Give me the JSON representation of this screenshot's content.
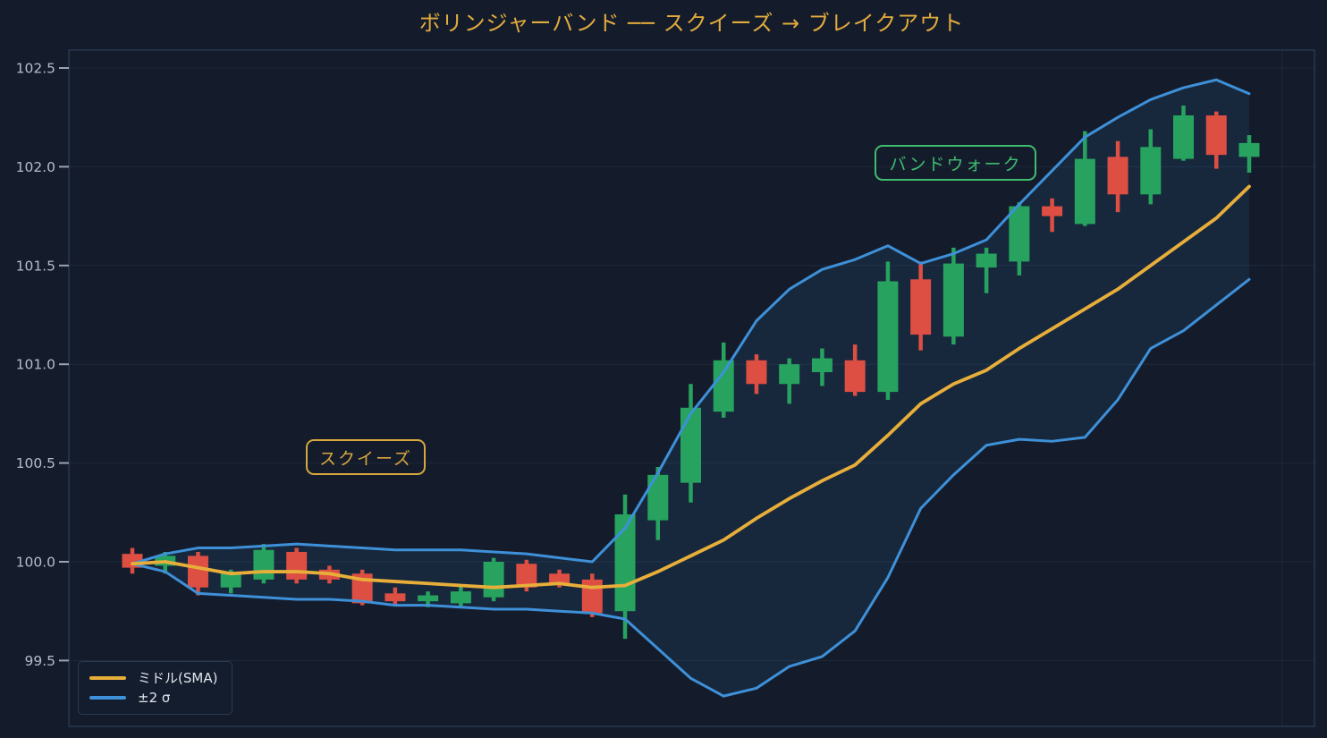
{
  "title": {
    "text": "ボリンジャーバンド ── スクイーズ → ブレイクアウト"
  },
  "annotations": {
    "squeeze": {
      "label": "スクイーズ"
    },
    "bandwalk": {
      "label": "バンドウォーク"
    }
  },
  "legend": {
    "items": [
      {
        "label": "ミドル(SMA)",
        "color": "#e8ae3a"
      },
      {
        "label": "±2 σ",
        "color": "#3e90d8"
      }
    ]
  },
  "colors": {
    "bg": "#141c2c",
    "grid": "#1e2939",
    "frame": "#273650",
    "tick_text": "#b4bdcb",
    "tick_mark": "#9aa3b2",
    "title_gold": "#e2ab3d",
    "squeeze_gold": "#d7a73f",
    "bandwalk_green": "#3fbd6e",
    "candle_up": "#27a35f",
    "candle_down": "#dd4e43",
    "sma": "#e8ae3a",
    "band": "#3e90d8",
    "band_fill": "rgba(62,144,216,0.10)"
  },
  "chart_data": {
    "type": "candlestick",
    "title": "ボリンジャーバンド ── スクイーズ → ブレイクアウト",
    "xlabel": "",
    "ylabel": "",
    "grid": true,
    "legend_position": "lower left",
    "ylim": [
      99.17,
      102.59
    ],
    "yticks": [
      {
        "value": 102.5,
        "label": "102.5"
      },
      {
        "value": 102.0,
        "label": "102.0"
      },
      {
        "value": 101.5,
        "label": "101.5"
      },
      {
        "value": 101.0,
        "label": "101.0"
      },
      {
        "value": 100.5,
        "label": "100.5"
      },
      {
        "value": 100.0,
        "label": "100.0"
      },
      {
        "value": 99.5,
        "label": "99.5"
      }
    ],
    "n_candles": 35,
    "candle_format": [
      "open",
      "high",
      "low",
      "close"
    ],
    "candles": [
      [
        100.04,
        100.07,
        99.94,
        99.97
      ],
      [
        99.98,
        100.05,
        99.94,
        100.03
      ],
      [
        100.03,
        100.05,
        99.83,
        99.87
      ],
      [
        99.87,
        99.96,
        99.84,
        99.95
      ],
      [
        99.91,
        100.09,
        99.89,
        100.06
      ],
      [
        100.05,
        100.07,
        99.89,
        99.91
      ],
      [
        99.96,
        99.98,
        99.89,
        99.91
      ],
      [
        99.94,
        99.96,
        99.78,
        99.79
      ],
      [
        99.84,
        99.87,
        99.78,
        99.8
      ],
      [
        99.8,
        99.85,
        99.77,
        99.83
      ],
      [
        99.79,
        99.88,
        99.77,
        99.85
      ],
      [
        99.82,
        100.02,
        99.8,
        100.0
      ],
      [
        99.99,
        100.01,
        99.85,
        99.87
      ],
      [
        99.94,
        99.96,
        99.87,
        99.89
      ],
      [
        99.91,
        99.94,
        99.72,
        99.74
      ],
      [
        99.75,
        100.34,
        99.61,
        100.24
      ],
      [
        100.21,
        100.48,
        100.11,
        100.44
      ],
      [
        100.4,
        100.9,
        100.3,
        100.78
      ],
      [
        100.76,
        101.11,
        100.73,
        101.02
      ],
      [
        101.02,
        101.05,
        100.85,
        100.9
      ],
      [
        100.9,
        101.03,
        100.8,
        101.0
      ],
      [
        100.96,
        101.08,
        100.89,
        101.03
      ],
      [
        101.02,
        101.1,
        100.84,
        100.86
      ],
      [
        100.86,
        101.52,
        100.82,
        101.42
      ],
      [
        101.43,
        101.52,
        101.07,
        101.15
      ],
      [
        101.14,
        101.59,
        101.1,
        101.51
      ],
      [
        101.49,
        101.59,
        101.36,
        101.56
      ],
      [
        101.52,
        101.82,
        101.45,
        101.8
      ],
      [
        101.8,
        101.84,
        101.67,
        101.75
      ],
      [
        101.71,
        102.18,
        101.7,
        102.04
      ],
      [
        102.05,
        102.13,
        101.77,
        101.86
      ],
      [
        101.86,
        102.19,
        101.81,
        102.1
      ],
      [
        102.04,
        102.31,
        102.03,
        102.26
      ],
      [
        102.26,
        102.28,
        101.99,
        102.06
      ],
      [
        102.05,
        102.16,
        101.97,
        102.12
      ]
    ],
    "series": [
      {
        "name": "ミドル(SMA)",
        "color": "#e8ae3a",
        "values": [
          99.99,
          100.0,
          99.97,
          99.94,
          99.95,
          99.95,
          99.94,
          99.91,
          99.9,
          99.89,
          99.88,
          99.87,
          99.88,
          99.89,
          99.87,
          99.88,
          99.95,
          100.03,
          100.11,
          100.22,
          100.32,
          100.41,
          100.49,
          100.64,
          100.8,
          100.9,
          100.97,
          101.08,
          101.18,
          101.28,
          101.38,
          101.5,
          101.62,
          101.74,
          101.9
        ]
      },
      {
        "name": "+2σ",
        "color": "#3e90d8",
        "values": [
          99.99,
          100.04,
          100.07,
          100.07,
          100.08,
          100.09,
          100.08,
          100.07,
          100.06,
          100.06,
          100.06,
          100.05,
          100.04,
          100.02,
          100.0,
          100.17,
          100.45,
          100.75,
          100.96,
          101.22,
          101.38,
          101.48,
          101.53,
          101.6,
          101.51,
          101.56,
          101.63,
          101.81,
          101.98,
          102.15,
          102.25,
          102.34,
          102.4,
          102.44,
          102.37
        ]
      },
      {
        "name": "-2σ",
        "color": "#3e90d8",
        "values": [
          99.99,
          99.95,
          99.84,
          99.83,
          99.82,
          99.81,
          99.81,
          99.8,
          99.78,
          99.78,
          99.77,
          99.76,
          99.76,
          99.75,
          99.74,
          99.71,
          99.56,
          99.41,
          99.32,
          99.36,
          99.47,
          99.52,
          99.65,
          99.92,
          100.27,
          100.44,
          100.59,
          100.62,
          100.61,
          100.63,
          100.82,
          101.08,
          101.17,
          101.3,
          101.43
        ]
      }
    ],
    "annotations": [
      {
        "label": "スクイーズ",
        "color": "#d7a73f"
      },
      {
        "label": "バンドウォーク",
        "color": "#3fbd6e"
      }
    ]
  }
}
